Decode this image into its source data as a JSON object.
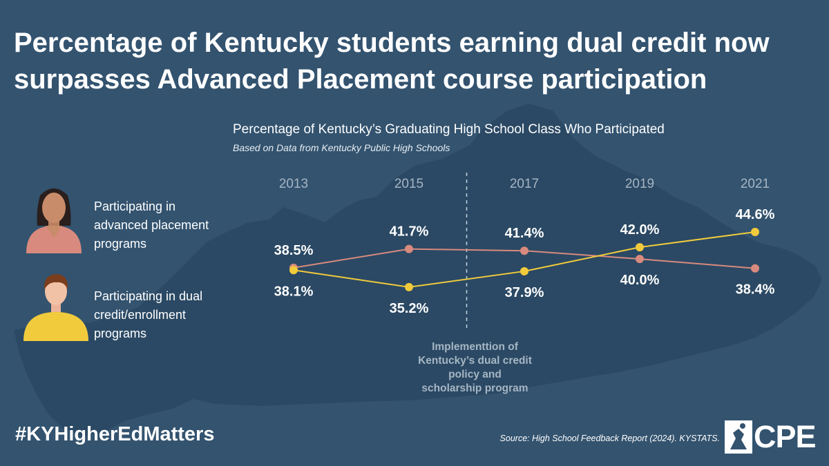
{
  "headline": "Percentage of Kentucky students earning dual credit now surpasses Advanced Placement course participation",
  "colors": {
    "background": "#33536f",
    "map": "#2b4964",
    "ap": "#d98a7e",
    "dual": "#f2cb3c",
    "years": "#a6b6c4"
  },
  "legend": [
    {
      "label": "Participating in advanced placement programs",
      "icon": "woman-avatar-icon"
    },
    {
      "label": "Participating in dual credit/enrollment programs",
      "icon": "man-avatar-icon"
    }
  ],
  "chart_data": {
    "type": "line",
    "title": "Percentage of Kentucky’s Graduating High School Class Who Participated",
    "subtitle": "Based on Data from Kentucky Public High Schools",
    "x": [
      "2013",
      "2015",
      "2017",
      "2019",
      "2021"
    ],
    "series": [
      {
        "name": "Participating in advanced placement programs",
        "color": "#d98a7e",
        "values": [
          38.5,
          41.7,
          41.4,
          40.0,
          38.4
        ],
        "labels": [
          "38.5%",
          "41.7%",
          "41.4%",
          "40.0%",
          "38.4%"
        ]
      },
      {
        "name": "Participating in dual credit/enrollment programs",
        "color": "#f2cb3c",
        "values": [
          38.1,
          35.2,
          37.9,
          42.0,
          44.6
        ],
        "labels": [
          "38.1%",
          "35.2%",
          "37.9%",
          "42.0%",
          "44.6%"
        ]
      }
    ],
    "annotation": {
      "after_year": "2015",
      "text": [
        "Implementtion of",
        "Kentucky’s dual credit",
        "policy and",
        "scholarship program"
      ]
    }
  },
  "footer": {
    "hashtag": "#KYHigherEdMatters",
    "source": "Source: High School Feedback Report (2024). KYSTATS.",
    "logo_text": "CPE"
  }
}
